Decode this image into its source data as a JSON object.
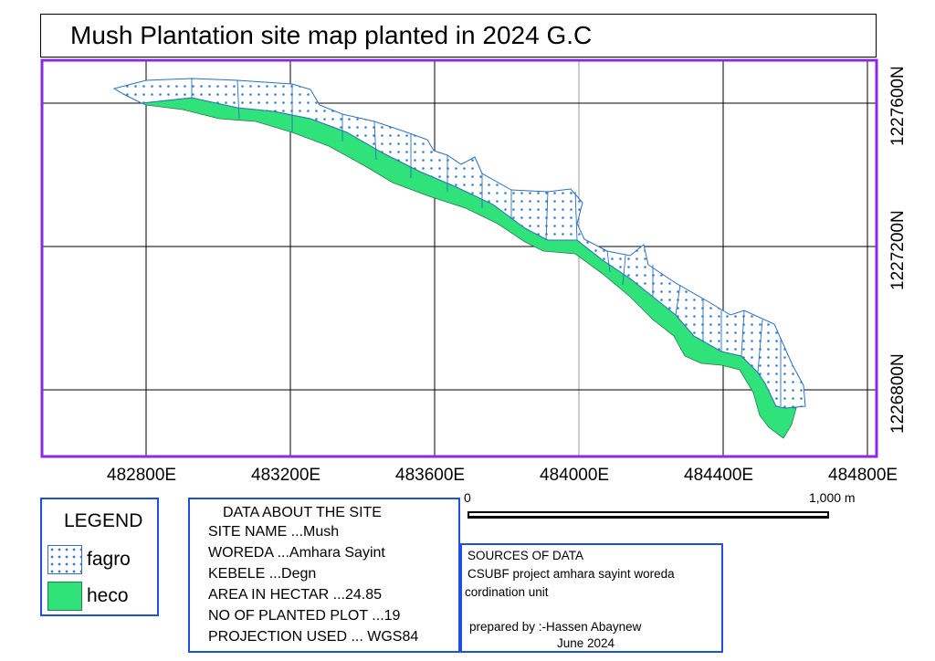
{
  "title": "Mush Plantation site map planted in 2024 G.C",
  "map": {
    "frame_color": "#8a2be2",
    "x_ticks": [
      "482800E",
      "483200E",
      "483600E",
      "484000E",
      "484400E",
      "484800E"
    ],
    "y_ticks": [
      "1227600N",
      "1227200N",
      "1226800N"
    ],
    "layers": [
      {
        "name": "fagro",
        "color": "#3a7fd5",
        "pattern": "dotted"
      },
      {
        "name": "heco",
        "color": "#2fe27a",
        "pattern": "solid"
      }
    ]
  },
  "scale_bar": {
    "start": "0",
    "end": "1,000 m"
  },
  "legend": {
    "title": "LEGEND",
    "items": [
      {
        "label": "fagro",
        "icon": "dotted-swatch-icon"
      },
      {
        "label": "heco",
        "icon": "green-swatch-icon"
      }
    ]
  },
  "site_info": {
    "title": "DATA ABOUT THE SITE",
    "lines": [
      "SITE NAME ...Mush",
      "WOREDA ...Amhara Sayint",
      "KEBELE ...Degn",
      "AREA IN HECTAR ...24.85",
      "NO OF PLANTED PLOT ...19",
      "PROJECTION USED ... WGS84"
    ]
  },
  "sources": {
    "title": "SOURCES OF DATA",
    "line1": " CSUBF project amhara sayint woreda",
    "line2": "cordination unit",
    "prepared": "prepared by :-Hassen Abaynew",
    "date": "June 2024"
  },
  "box_color": "#1f4fe0"
}
